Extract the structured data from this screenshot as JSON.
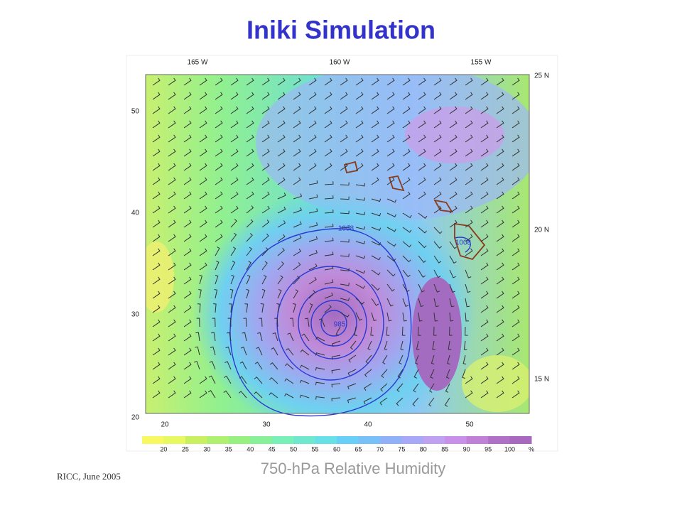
{
  "title": "Iniki Simulation",
  "footer": "RICC, June 2005",
  "caption": "750-hPa Relative Humidity",
  "map": {
    "top_labels": [
      "165 W",
      "160 W",
      "155 W"
    ],
    "right_labels": [
      "25 N",
      "20 N",
      "15 N"
    ],
    "left_ticks": [
      "50",
      "40",
      "30",
      "20"
    ],
    "bottom_ticks": [
      "20",
      "30",
      "40",
      "50"
    ],
    "contour_labels": [
      "1008",
      "1008",
      "985"
    ],
    "colorbar_labels": [
      "20",
      "25",
      "30",
      "35",
      "40",
      "45",
      "50",
      "55",
      "60",
      "65",
      "70",
      "75",
      "80",
      "85",
      "90",
      "95",
      "100",
      "%"
    ]
  }
}
